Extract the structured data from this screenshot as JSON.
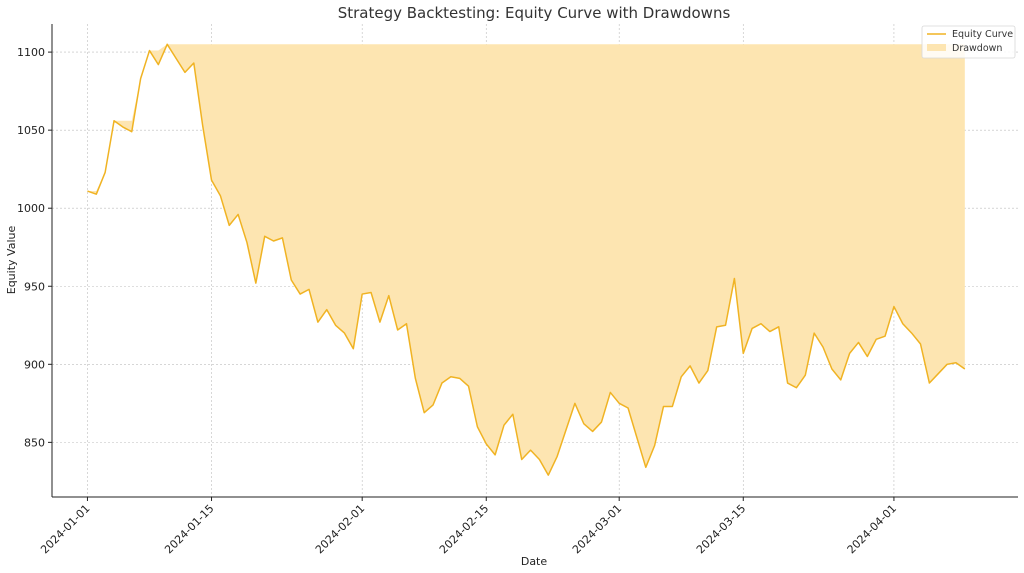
{
  "chart_data": {
    "type": "line",
    "title": "Strategy Backtesting: Equity Curve with Drawdowns",
    "xlabel": "Date",
    "ylabel": "Equity Value",
    "x_range": [
      "2023-12-28",
      "2024-04-15"
    ],
    "ylim": [
      815,
      1118
    ],
    "x_ticks": [
      "2024-01-01",
      "2024-01-15",
      "2024-02-01",
      "2024-02-15",
      "2024-03-01",
      "2024-03-15",
      "2024-04-01"
    ],
    "y_ticks": [
      850,
      900,
      950,
      1000,
      1050,
      1100
    ],
    "grid": true,
    "legend_position": "top-right",
    "colors": {
      "line": "#f0b323",
      "fill": "#fde5b1"
    },
    "series": [
      {
        "name": "Equity Curve",
        "start_date": "2024-01-01",
        "values": [
          1011,
          1009,
          1023,
          1056,
          1052,
          1049,
          1083,
          1101,
          1092,
          1105,
          1096,
          1087,
          1093,
          1053,
          1018,
          1008,
          989,
          996,
          978,
          952,
          982,
          979,
          981,
          954,
          945,
          948,
          927,
          935,
          925,
          920,
          910,
          945,
          946,
          927,
          944,
          922,
          926,
          891,
          869,
          874,
          888,
          892,
          891,
          886,
          860,
          849,
          842,
          861,
          868,
          839,
          845,
          839,
          829,
          841,
          858,
          875,
          862,
          857,
          863,
          882,
          875,
          872,
          853,
          834,
          848,
          873,
          873,
          892,
          899,
          888,
          896,
          924,
          925,
          955,
          907,
          923,
          926,
          921,
          924,
          888,
          885,
          893,
          920,
          911,
          897,
          890,
          907,
          914,
          905,
          916,
          918,
          937,
          926,
          920,
          913,
          888,
          894,
          900,
          901,
          897
        ]
      },
      {
        "name": "Drawdown"
      }
    ]
  }
}
